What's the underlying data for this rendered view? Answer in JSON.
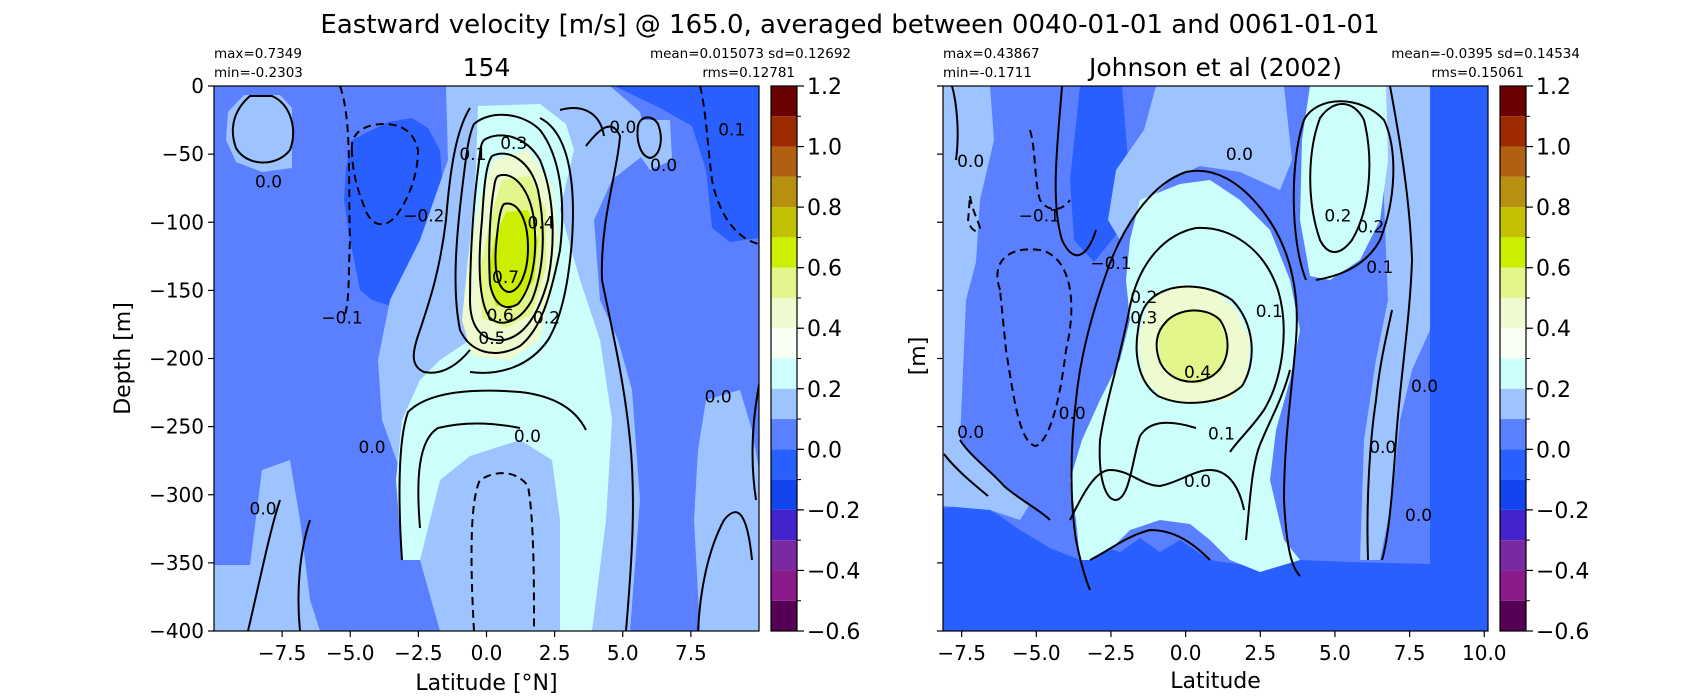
{
  "figure": {
    "suptitle": "Eastward velocity [m/s] @ 165.0, averaged between 0040-01-01 and 0061-01-01"
  },
  "chart_data": [
    {
      "type": "heatmap",
      "title": "154",
      "xlabel": "Latitude [°N]",
      "ylabel": "Depth [m]",
      "xlim": [
        -10,
        10
      ],
      "ylim": [
        -400,
        0
      ],
      "xticks": [
        -7.5,
        -5.0,
        -2.5,
        0.0,
        2.5,
        5.0,
        7.5
      ],
      "xtick_labels": [
        "−7.5",
        "−5.0",
        "−2.5",
        "0.0",
        "2.5",
        "5.0",
        "7.5"
      ],
      "yticks": [
        0,
        -50,
        -100,
        -150,
        -200,
        -250,
        -300,
        -350,
        -400
      ],
      "ytick_labels": [
        "0",
        "−50",
        "−100",
        "−150",
        "−200",
        "−250",
        "−300",
        "−350",
        "−400"
      ],
      "stats_left": [
        "max=0.7349",
        "min=-0.2303"
      ],
      "stats_right": [
        "mean=0.015073 sd=0.12692",
        "rms=0.12781"
      ],
      "max": 0.7349,
      "min": -0.2303,
      "core": {
        "lat": 0.5,
        "depth": -140,
        "value": 0.7349
      },
      "contour_labels": [
        {
          "text": "0.0",
          "lat": -8.0,
          "depth": -70
        },
        {
          "text": "−0.2",
          "lat": -2.3,
          "depth": -95
        },
        {
          "text": "−0.1",
          "lat": -5.3,
          "depth": -170
        },
        {
          "text": "0.1",
          "lat": -0.5,
          "depth": -50
        },
        {
          "text": "0.3",
          "lat": 1.0,
          "depth": -42
        },
        {
          "text": "0.4",
          "lat": 2.0,
          "depth": -100
        },
        {
          "text": "0.7",
          "lat": 0.7,
          "depth": -140
        },
        {
          "text": "0.6",
          "lat": 0.5,
          "depth": -168
        },
        {
          "text": "0.5",
          "lat": 0.2,
          "depth": -185
        },
        {
          "text": "0.2",
          "lat": 2.2,
          "depth": -170
        },
        {
          "text": "0.0",
          "lat": 1.5,
          "depth": -257
        },
        {
          "text": "0.0",
          "lat": -4.2,
          "depth": -265
        },
        {
          "text": "0.0",
          "lat": 5.0,
          "depth": -30
        },
        {
          "text": "0.0",
          "lat": 6.5,
          "depth": -58
        },
        {
          "text": "0.1",
          "lat": 9.0,
          "depth": -32
        },
        {
          "text": "0.0",
          "lat": 8.5,
          "depth": -228
        },
        {
          "text": "0.0",
          "lat": -8.2,
          "depth": -310
        }
      ]
    },
    {
      "type": "heatmap",
      "title": "Johnson et al (2002)",
      "xlabel": "Latitude",
      "ylabel": "[m]",
      "xlim": [
        -8.125,
        10.125
      ],
      "ylim": [
        -400,
        0
      ],
      "xticks": [
        -7.5,
        -5.0,
        -2.5,
        0.0,
        2.5,
        5.0,
        7.5,
        10.0
      ],
      "xtick_labels": [
        "−7.5",
        "−5.0",
        "−2.5",
        "0.0",
        "2.5",
        "5.0",
        "7.5",
        "10.0"
      ],
      "yticks": [
        0,
        -50,
        -100,
        -150,
        -200,
        -250,
        -300,
        -350,
        -400
      ],
      "stats_left": [
        "max=0.43867",
        "min=-0.1711"
      ],
      "stats_right": [
        "mean=-0.0395 sd=0.14534",
        "rms=0.15061"
      ],
      "max": 0.43867,
      "min": -0.1711,
      "core": {
        "lat": 0.2,
        "depth": -187,
        "value": 0.43867
      },
      "contour_labels": [
        {
          "text": "0.0",
          "lat": -7.2,
          "depth": -55
        },
        {
          "text": "−0.1",
          "lat": -4.9,
          "depth": -95
        },
        {
          "text": "0.0",
          "lat": 1.8,
          "depth": -50
        },
        {
          "text": "−0.1",
          "lat": -2.5,
          "depth": -130
        },
        {
          "text": "0.2",
          "lat": -1.4,
          "depth": -155
        },
        {
          "text": "0.3",
          "lat": -1.4,
          "depth": -170
        },
        {
          "text": "0.4",
          "lat": 0.4,
          "depth": -210
        },
        {
          "text": "0.1",
          "lat": 2.8,
          "depth": -165
        },
        {
          "text": "0.1",
          "lat": 1.2,
          "depth": -255
        },
        {
          "text": "0.0",
          "lat": 0.4,
          "depth": -290
        },
        {
          "text": "0.0",
          "lat": -3.8,
          "depth": -240
        },
        {
          "text": "0.0",
          "lat": -7.2,
          "depth": -254
        },
        {
          "text": "0.2",
          "lat": 5.1,
          "depth": -95
        },
        {
          "text": "0.2",
          "lat": 6.2,
          "depth": -103
        },
        {
          "text": "0.1",
          "lat": 6.5,
          "depth": -133
        },
        {
          "text": "0.0",
          "lat": 8.0,
          "depth": -220
        },
        {
          "text": "0.0",
          "lat": 6.6,
          "depth": -265
        },
        {
          "text": "0.0",
          "lat": 7.8,
          "depth": -315
        }
      ]
    }
  ],
  "colorbar": {
    "levels": [
      1.2,
      1.1,
      1.0,
      0.9,
      0.8,
      0.7,
      0.6,
      0.5,
      0.4,
      0.3,
      0.2,
      0.1,
      0.0,
      -0.1,
      -0.2,
      -0.3,
      -0.4,
      -0.5,
      -0.6
    ],
    "tick_values": [
      1.2,
      1.0,
      0.8,
      0.6,
      0.4,
      0.2,
      0.0,
      -0.2,
      -0.4,
      -0.6
    ],
    "tick_labels": [
      "1.2",
      "1.0",
      "0.8",
      "0.6",
      "0.4",
      "0.2",
      "0.0",
      "−0.2",
      "−0.4",
      "−0.6"
    ],
    "colors_top_to_bottom": [
      "#6b0000",
      "#9e2a00",
      "#b06010",
      "#b89010",
      "#c2c000",
      "#ccee00",
      "#e2f68c",
      "#eefad0",
      "#f8fff4",
      "#ccfffc",
      "#9ec4ff",
      "#5b80ff",
      "#2a5fff",
      "#1444ee",
      "#4422cc",
      "#7a2aa0",
      "#8a1b8a",
      "#560055"
    ],
    "fill_colors": {
      "neg_strong": "#2a5fff",
      "neg_weak": "#5b80ff",
      "zero": "#9ec4ff",
      "pos_weak": "#ccfffc",
      "pos_mid": "#eefad0",
      "pos_high": "#e2f68c",
      "pos_core": "#ccee00"
    }
  }
}
